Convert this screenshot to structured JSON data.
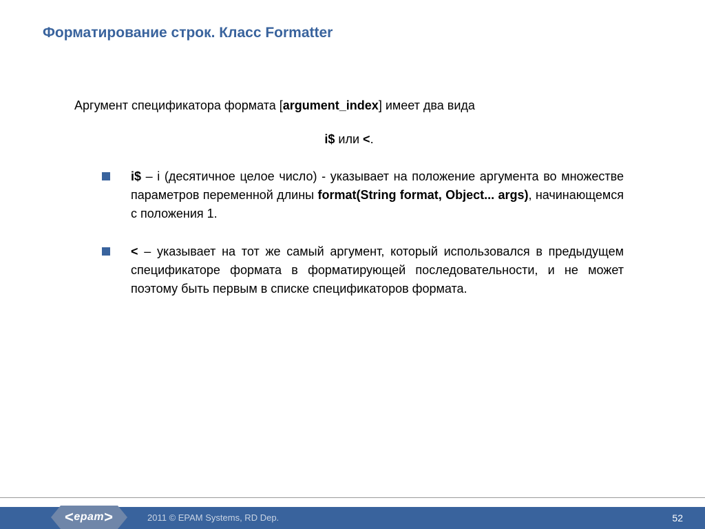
{
  "colors": {
    "accent": "#39639d",
    "logo_bg": "#6f86a9",
    "footer_text": "#c9d4e4",
    "text": "#000000",
    "background": "#ffffff",
    "divider": "#999999"
  },
  "title": "Форматирование строк. Класс Formatter",
  "intro": {
    "pre": "Аргумент спецификатора формата [",
    "bold": "argument_index",
    "post": "] имеет два вида"
  },
  "center": {
    "b1": "i$",
    "mid": "  или ",
    "b2": "<",
    "tail": "."
  },
  "bullets": [
    {
      "lead": "i$",
      "dash": "  – i (десятичное целое число) - указывает на положение аргумента во множестве параметров переменной длины ",
      "code": "format(String format, Object... args)",
      "tail": ", начинающемся с положения 1."
    },
    {
      "lead": "<",
      "dash": "  – указывает на тот же самый аргумент, который использовался в предыдущем спецификаторе формата в форматирующей последовательности, и не может поэтому быть первым в списке спецификаторов формата.",
      "code": "",
      "tail": ""
    }
  ],
  "footer": {
    "copyright": "2011 © EPAM Systems, RD Dep.",
    "page": "52",
    "logo": "epam"
  }
}
